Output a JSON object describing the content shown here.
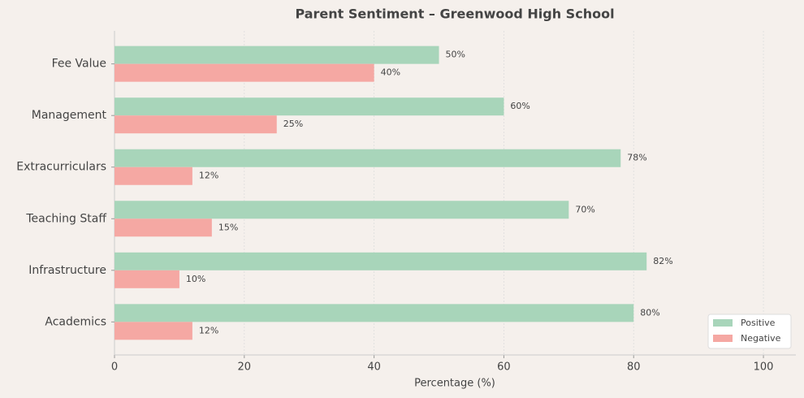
{
  "chart_data": {
    "type": "barh_grouped",
    "title": "Parent Sentiment – Greenwood High School",
    "xlabel": "Percentage (%)",
    "categories": [
      "Academics",
      "Infrastructure",
      "Teaching Staff",
      "Extracurriculars",
      "Management",
      "Fee Value"
    ],
    "series": [
      {
        "name": "Positive",
        "color": "#a8d5ba",
        "values": [
          80,
          82,
          70,
          78,
          60,
          50
        ],
        "value_labels": [
          "80%",
          "82%",
          "70%",
          "78%",
          "60%",
          "50%"
        ]
      },
      {
        "name": "Negative",
        "color": "#f5a8a3",
        "values": [
          12,
          10,
          15,
          12,
          25,
          40
        ],
        "value_labels": [
          "12%",
          "10%",
          "15%",
          "12%",
          "25%",
          "40%"
        ]
      }
    ],
    "xlim": [
      0,
      105
    ],
    "xticks": [
      0,
      20,
      40,
      60,
      80,
      100
    ],
    "grid": true,
    "legend": "lower right"
  }
}
